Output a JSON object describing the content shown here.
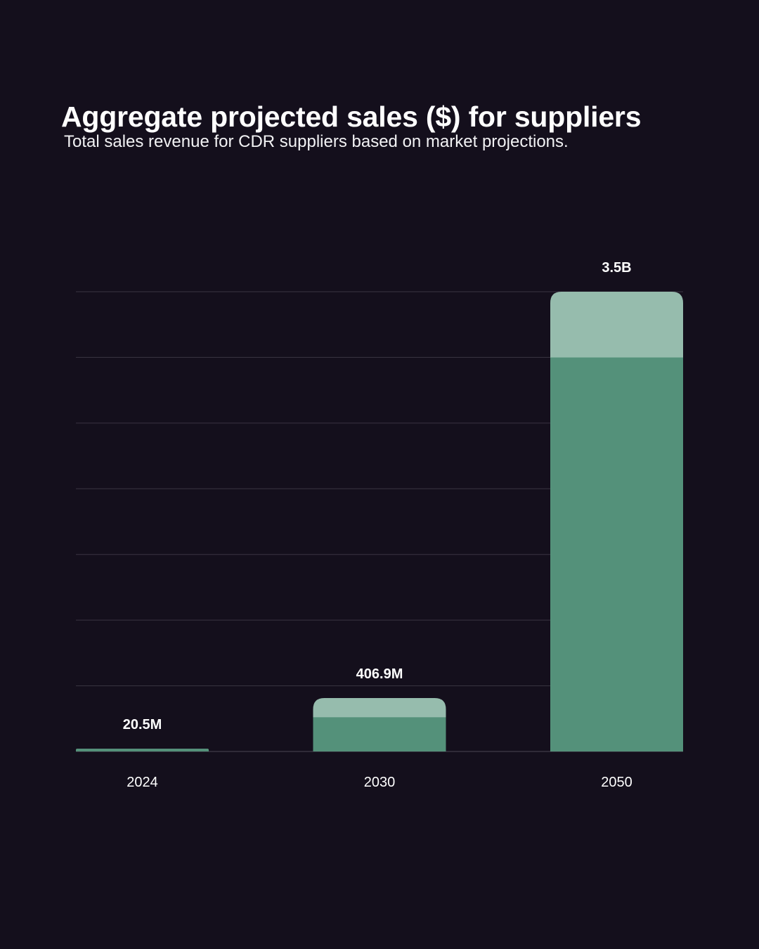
{
  "header": {
    "title": "Aggregate projected sales ($) for suppliers",
    "subtitle": "Total sales revenue for CDR suppliers based on market projections."
  },
  "colors": {
    "background": "#140f1c",
    "bar_base": "#54917a",
    "bar_top": "#96bcad",
    "grid": "#3a3542",
    "text": "#ffffff"
  },
  "chart_data": {
    "type": "bar",
    "title": "Aggregate projected sales ($) for suppliers",
    "subtitle": "Total sales revenue for CDR suppliers based on market projections.",
    "categories": [
      "2024",
      "2030",
      "2050"
    ],
    "values": [
      20500000,
      406900000,
      3500000000
    ],
    "data_labels": [
      "20.5M",
      "406.9M",
      "3.5B"
    ],
    "xlabel": "",
    "ylabel": "",
    "ylim": [
      0,
      3500000000
    ],
    "grid": true,
    "grid_lines": 7,
    "bar_top_segment_fraction": [
      0,
      0.36,
      0.143
    ],
    "legend": "none"
  }
}
